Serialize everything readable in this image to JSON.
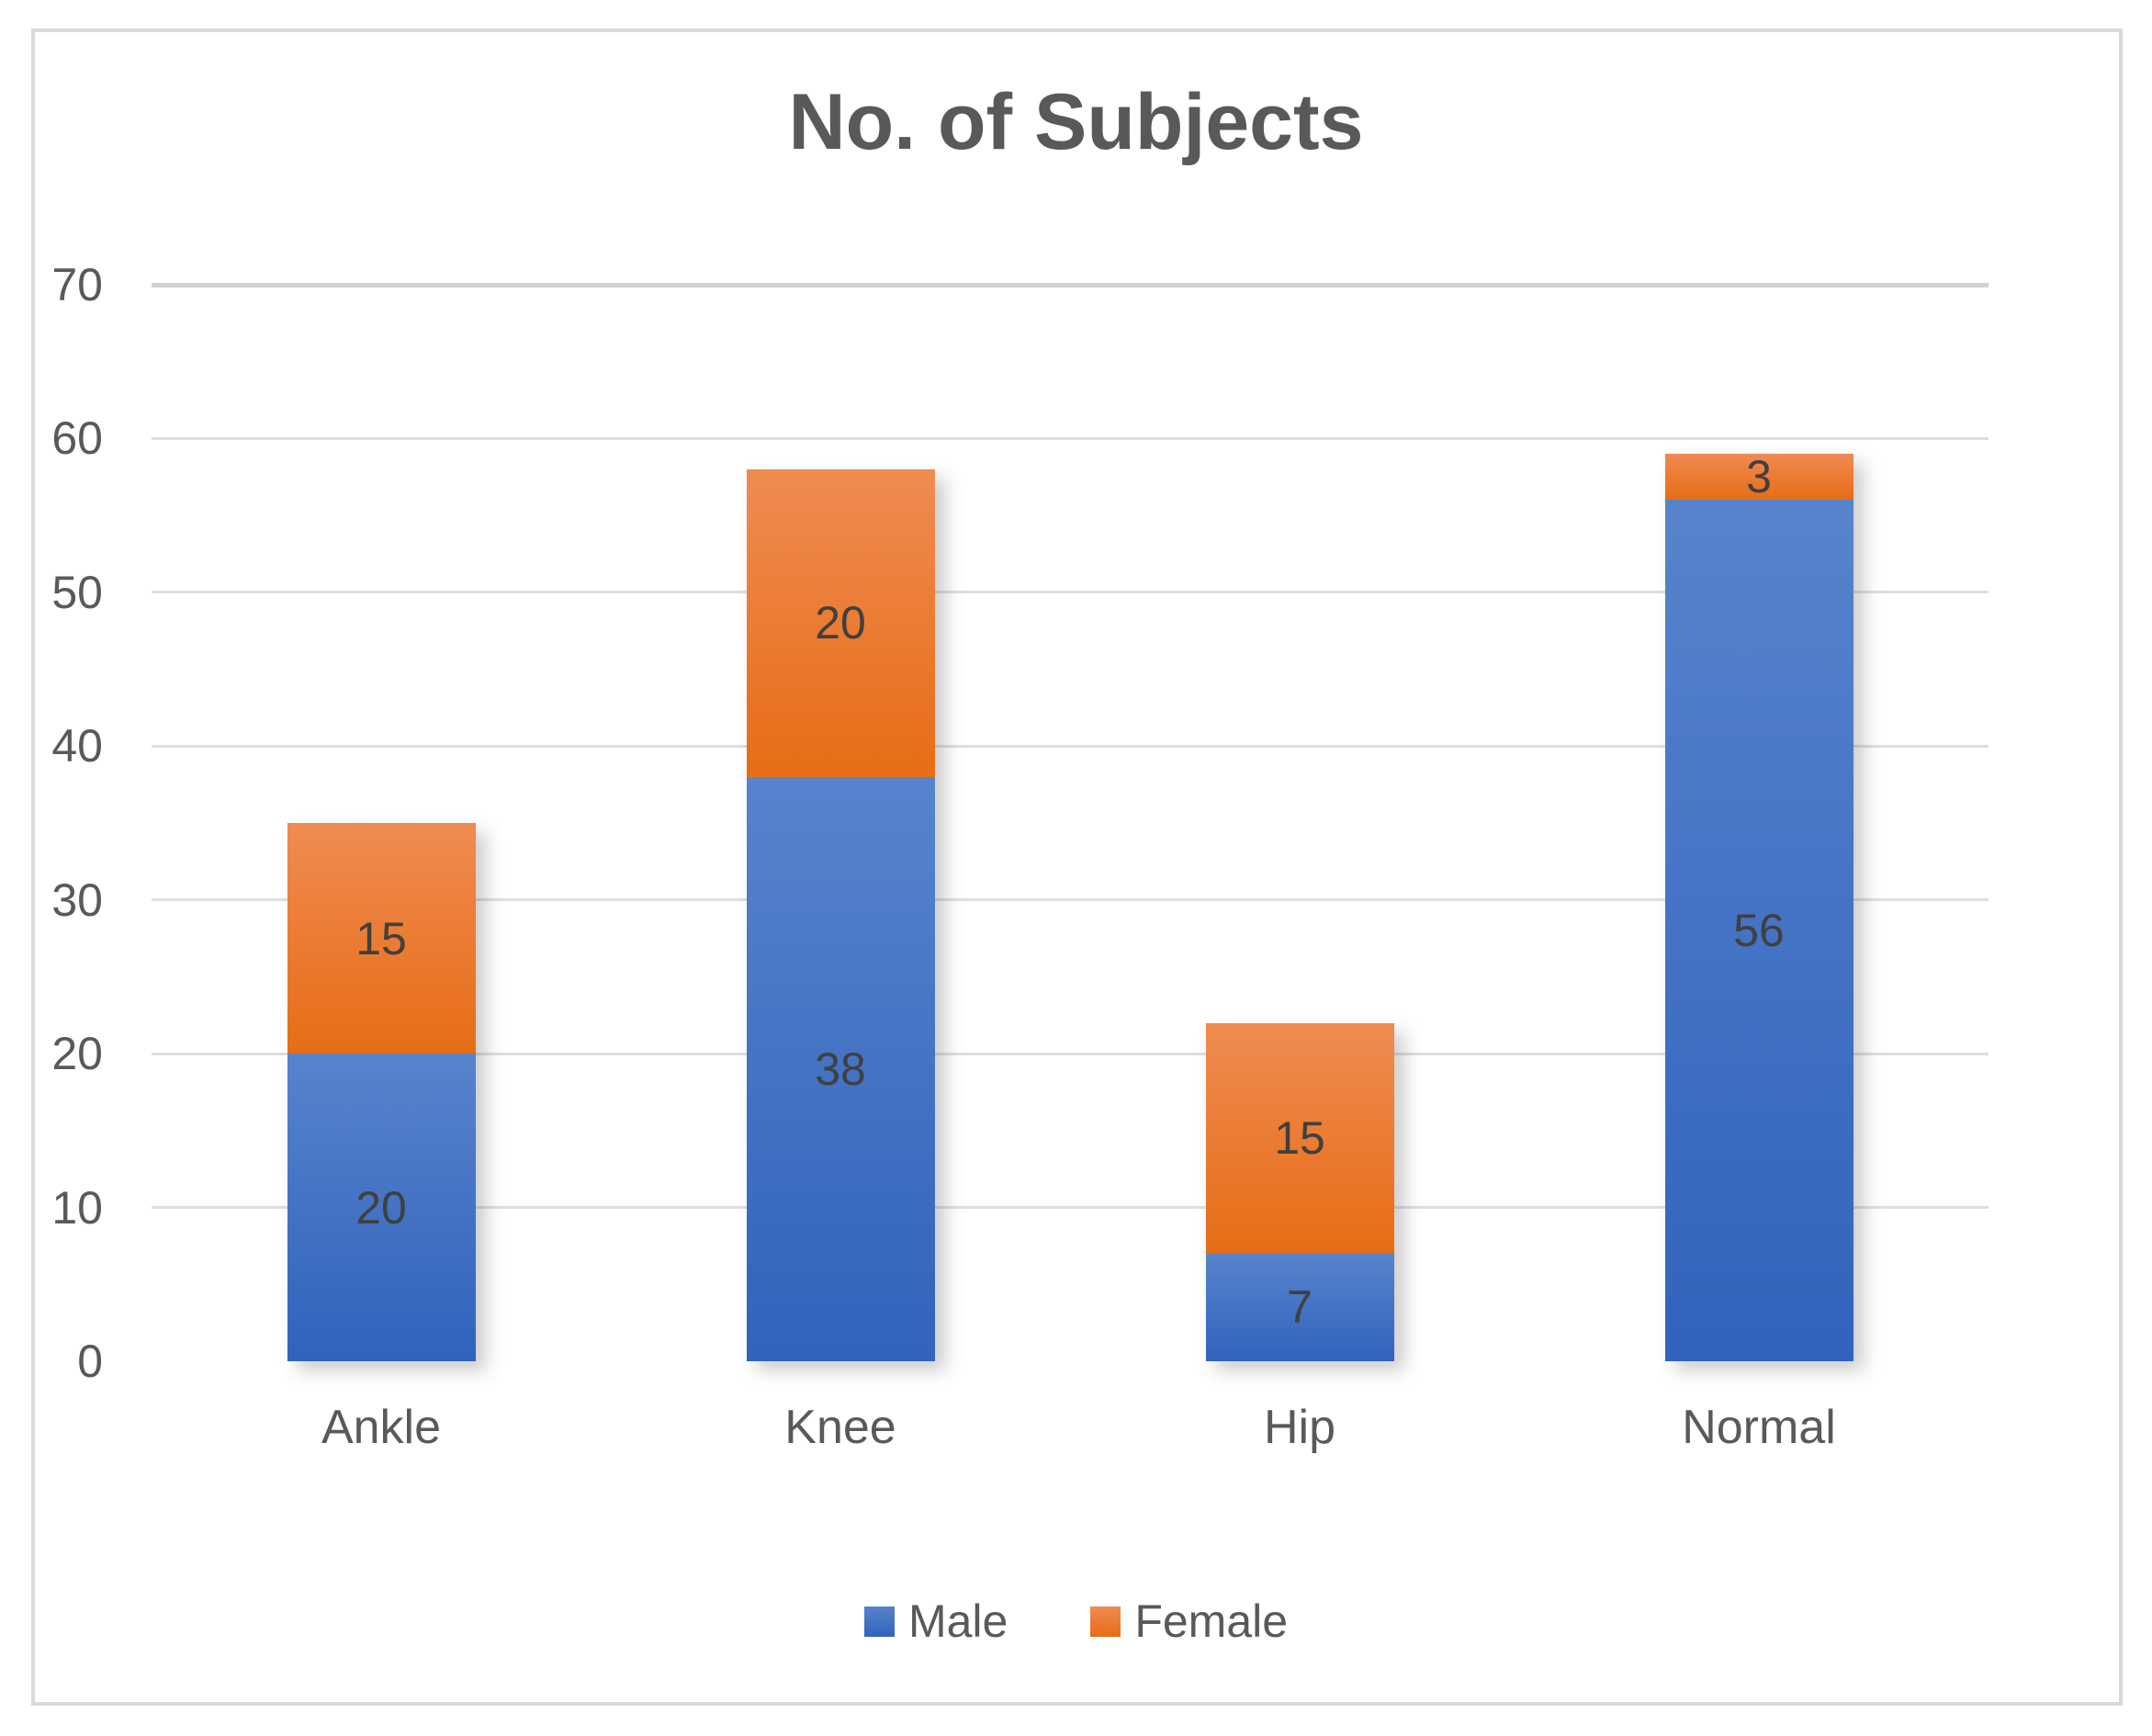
{
  "chart_data": {
    "type": "bar",
    "stacked": true,
    "title": "No. of Subjects",
    "categories": [
      "Ankle",
      "Knee",
      "Hip",
      "Normal"
    ],
    "series": [
      {
        "name": "Male",
        "values": [
          20,
          38,
          7,
          56
        ]
      },
      {
        "name": "Female",
        "values": [
          15,
          20,
          15,
          3
        ]
      }
    ],
    "totals": [
      35,
      58,
      22,
      59
    ],
    "xlabel": "",
    "ylabel": "",
    "ylim": [
      0,
      70
    ],
    "yticks": [
      0,
      10,
      20,
      30,
      40,
      50,
      60,
      70
    ],
    "grid": true,
    "data_labels": true,
    "legend_position": "bottom"
  },
  "legend": {
    "entries": [
      "Male",
      "Female"
    ]
  },
  "colors": {
    "male_base": "#4472C4",
    "male_gradient_top": "#5883CC",
    "male_gradient_bottom": "#3163BD",
    "female_base": "#ED7D31",
    "female_gradient_top": "#F08B52",
    "female_gradient_bottom": "#E66D15",
    "title_text": "#595959",
    "axis_text": "#595959",
    "data_label_text": "#404040",
    "gridline": "#DEDEDE",
    "gridline_top": "#D2D2D2",
    "frame_border": "#D9D9D9",
    "background": "#FFFFFF"
  }
}
